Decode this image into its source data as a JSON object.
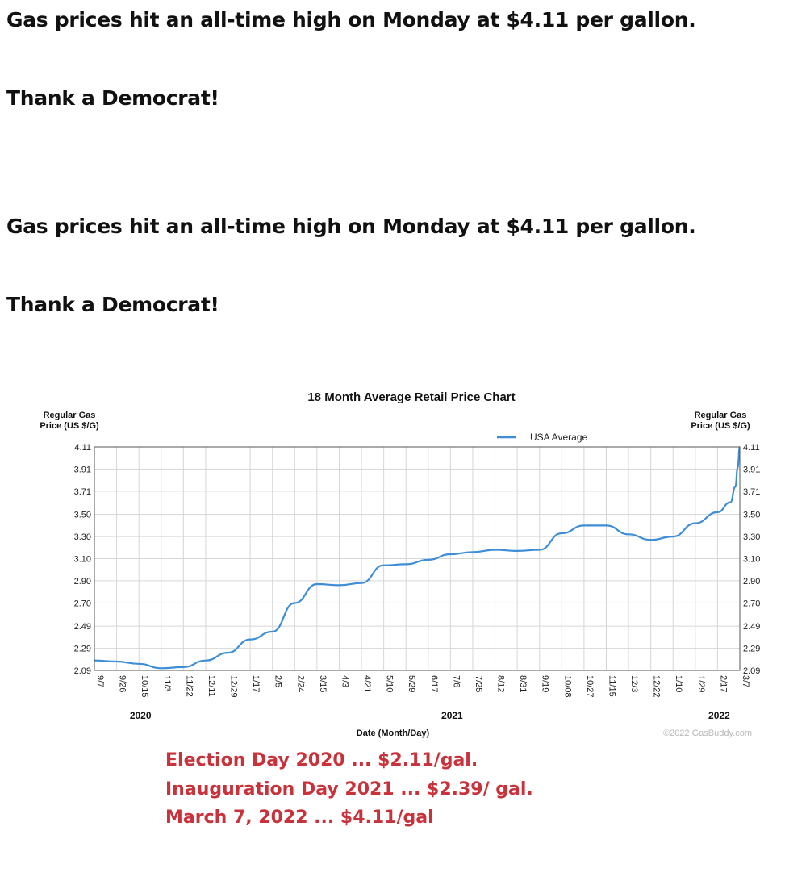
{
  "post": {
    "lines": [
      "Gas prices hit an all-time high on Monday at $4.11 per gallon.",
      "Thank a Democrat!",
      "Gas prices hit an all-time high on Monday at $4.11 per gallon.",
      "Thank a Democrat!"
    ]
  },
  "annotations": [
    "Election Day 2020 ... $2.11/gal.",
    "Inauguration Day 2021 ... $2.39/ gal.",
    "March 7, 2022 ... $4.11/gal"
  ],
  "colors": {
    "line": "#3d8ed6",
    "annotation": "#c8323a"
  },
  "chart_data": {
    "type": "line",
    "title": "18 Month Average Retail Price Chart",
    "ylabel_left": [
      "Regular Gas",
      "Price (US $/G)"
    ],
    "ylabel_right": [
      "Regular Gas",
      "Price (US $/G)"
    ],
    "xlabel": "Date (Month/Day)",
    "credit": "©2022 GasBuddy.com",
    "legend": "top-right",
    "grid": true,
    "ylim": [
      2.09,
      4.11
    ],
    "y_ticks": [
      "4.11",
      "3.91",
      "3.71",
      "3.50",
      "3.30",
      "3.10",
      "2.90",
      "2.70",
      "2.49",
      "2.29",
      "2.09"
    ],
    "x_ticks": [
      "9/7",
      "9/26",
      "10/15",
      "11/3",
      "11/22",
      "12/11",
      "12/29",
      "1/17",
      "2/5",
      "2/24",
      "3/15",
      "4/3",
      "4/21",
      "5/10",
      "5/29",
      "6/17",
      "7/6",
      "7/25",
      "8/12",
      "8/31",
      "9/19",
      "10/08",
      "10/27",
      "11/15",
      "12/3",
      "12/22",
      "1/10",
      "1/29",
      "2/17",
      "3/7"
    ],
    "years": [
      {
        "label": "2020",
        "at_tick": "10/15"
      },
      {
        "label": "2021",
        "at_tick": "7/6"
      },
      {
        "label": "2022",
        "at_tick": "2/17"
      }
    ],
    "series": [
      {
        "name": "USA Average",
        "x": [
          "9/7",
          "9/26",
          "10/15",
          "11/3",
          "11/22",
          "12/11",
          "12/29",
          "1/17",
          "2/5",
          "2/24",
          "3/15",
          "4/3",
          "4/21",
          "5/10",
          "5/29",
          "6/17",
          "7/6",
          "7/25",
          "8/12",
          "8/31",
          "9/19",
          "10/08",
          "10/27",
          "11/15",
          "12/3",
          "12/22",
          "1/10",
          "1/29",
          "2/17",
          "2/28",
          "3/3",
          "3/5",
          "3/7"
        ],
        "values": [
          2.18,
          2.17,
          2.15,
          2.11,
          2.12,
          2.18,
          2.25,
          2.37,
          2.44,
          2.7,
          2.87,
          2.86,
          2.88,
          3.04,
          3.05,
          3.09,
          3.14,
          3.16,
          3.18,
          3.17,
          3.18,
          3.33,
          3.4,
          3.4,
          3.32,
          3.27,
          3.3,
          3.42,
          3.52,
          3.61,
          3.75,
          3.92,
          4.11
        ]
      }
    ]
  }
}
